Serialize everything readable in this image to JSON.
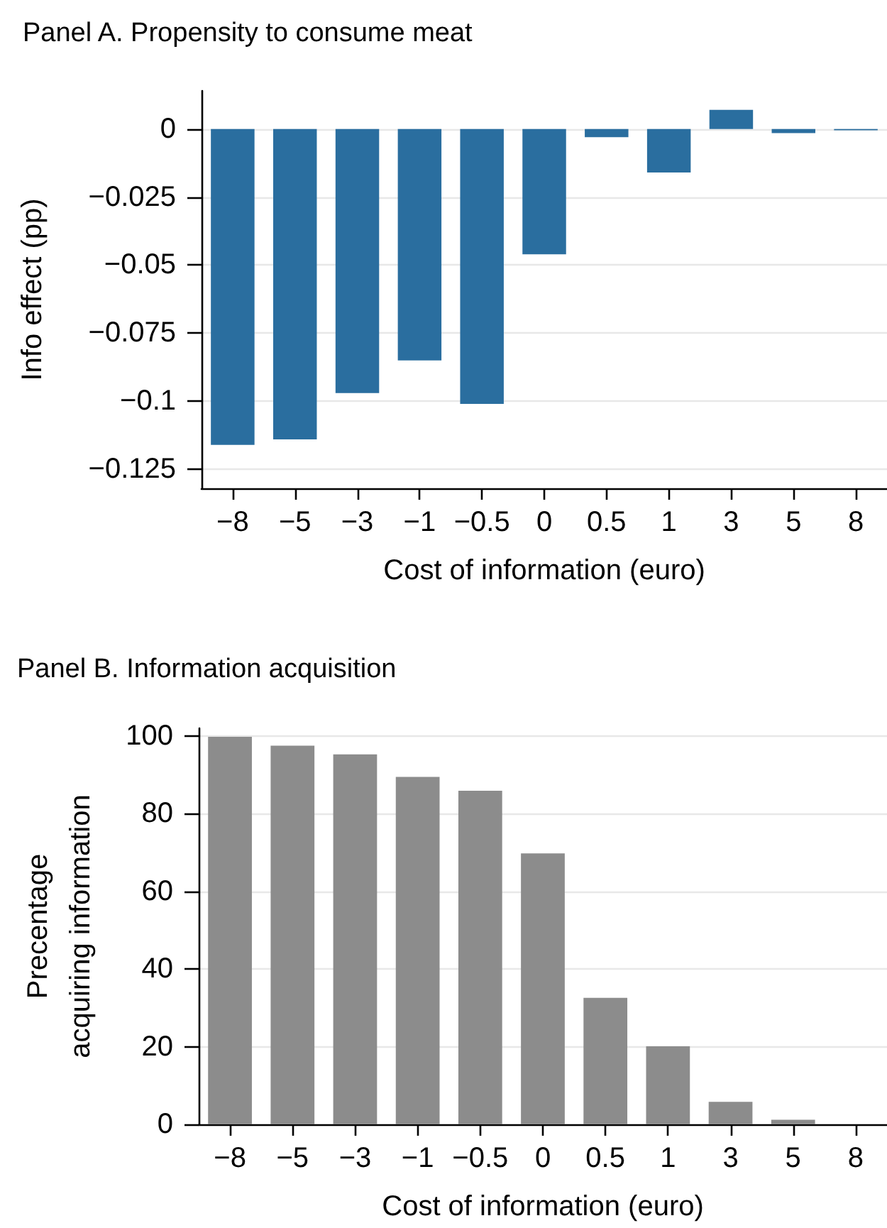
{
  "chart_data": [
    {
      "type": "bar",
      "title": "Panel A. Propensity to consume meat",
      "xlabel": "Cost of information (euro)",
      "ylabel": "Info effect (pp)",
      "categories": [
        "−8",
        "−5",
        "−3",
        "−1",
        "−0.5",
        "0",
        "0.5",
        "1",
        "3",
        "5",
        "8"
      ],
      "values": [
        -0.116,
        -0.114,
        -0.097,
        -0.085,
        -0.101,
        -0.046,
        -0.003,
        -0.016,
        0.007,
        -0.0015,
        -0.0005
      ],
      "color": "#2a6e9f",
      "ylim": [
        -0.132,
        0.014
      ],
      "yticks": [
        0,
        {
          "value": -0.025,
          "label": "−0.025"
        },
        {
          "value": -0.05,
          "label": "−0.05"
        },
        {
          "value": -0.075,
          "label": "−0.075"
        },
        {
          "value": -0.1,
          "label": "−0.1"
        },
        {
          "value": -0.125,
          "label": "−0.125"
        }
      ],
      "grid": "y"
    },
    {
      "type": "bar",
      "title": "Panel B. Information acquisition",
      "xlabel": "Cost of information (euro)",
      "ylabel": "Precentage\nacquiring information",
      "categories": [
        "−8",
        "−5",
        "−3",
        "−1",
        "−0.5",
        "0",
        "0.5",
        "1",
        "3",
        "5",
        "8"
      ],
      "values": [
        99.8,
        97.5,
        95.3,
        89.5,
        85.9,
        69.8,
        32.6,
        20.1,
        5.8,
        1.2,
        0
      ],
      "color": "#8c8c8c",
      "ylim": [
        0,
        102
      ],
      "yticks": [
        0,
        20,
        40,
        60,
        80,
        100
      ],
      "grid": "y"
    }
  ]
}
